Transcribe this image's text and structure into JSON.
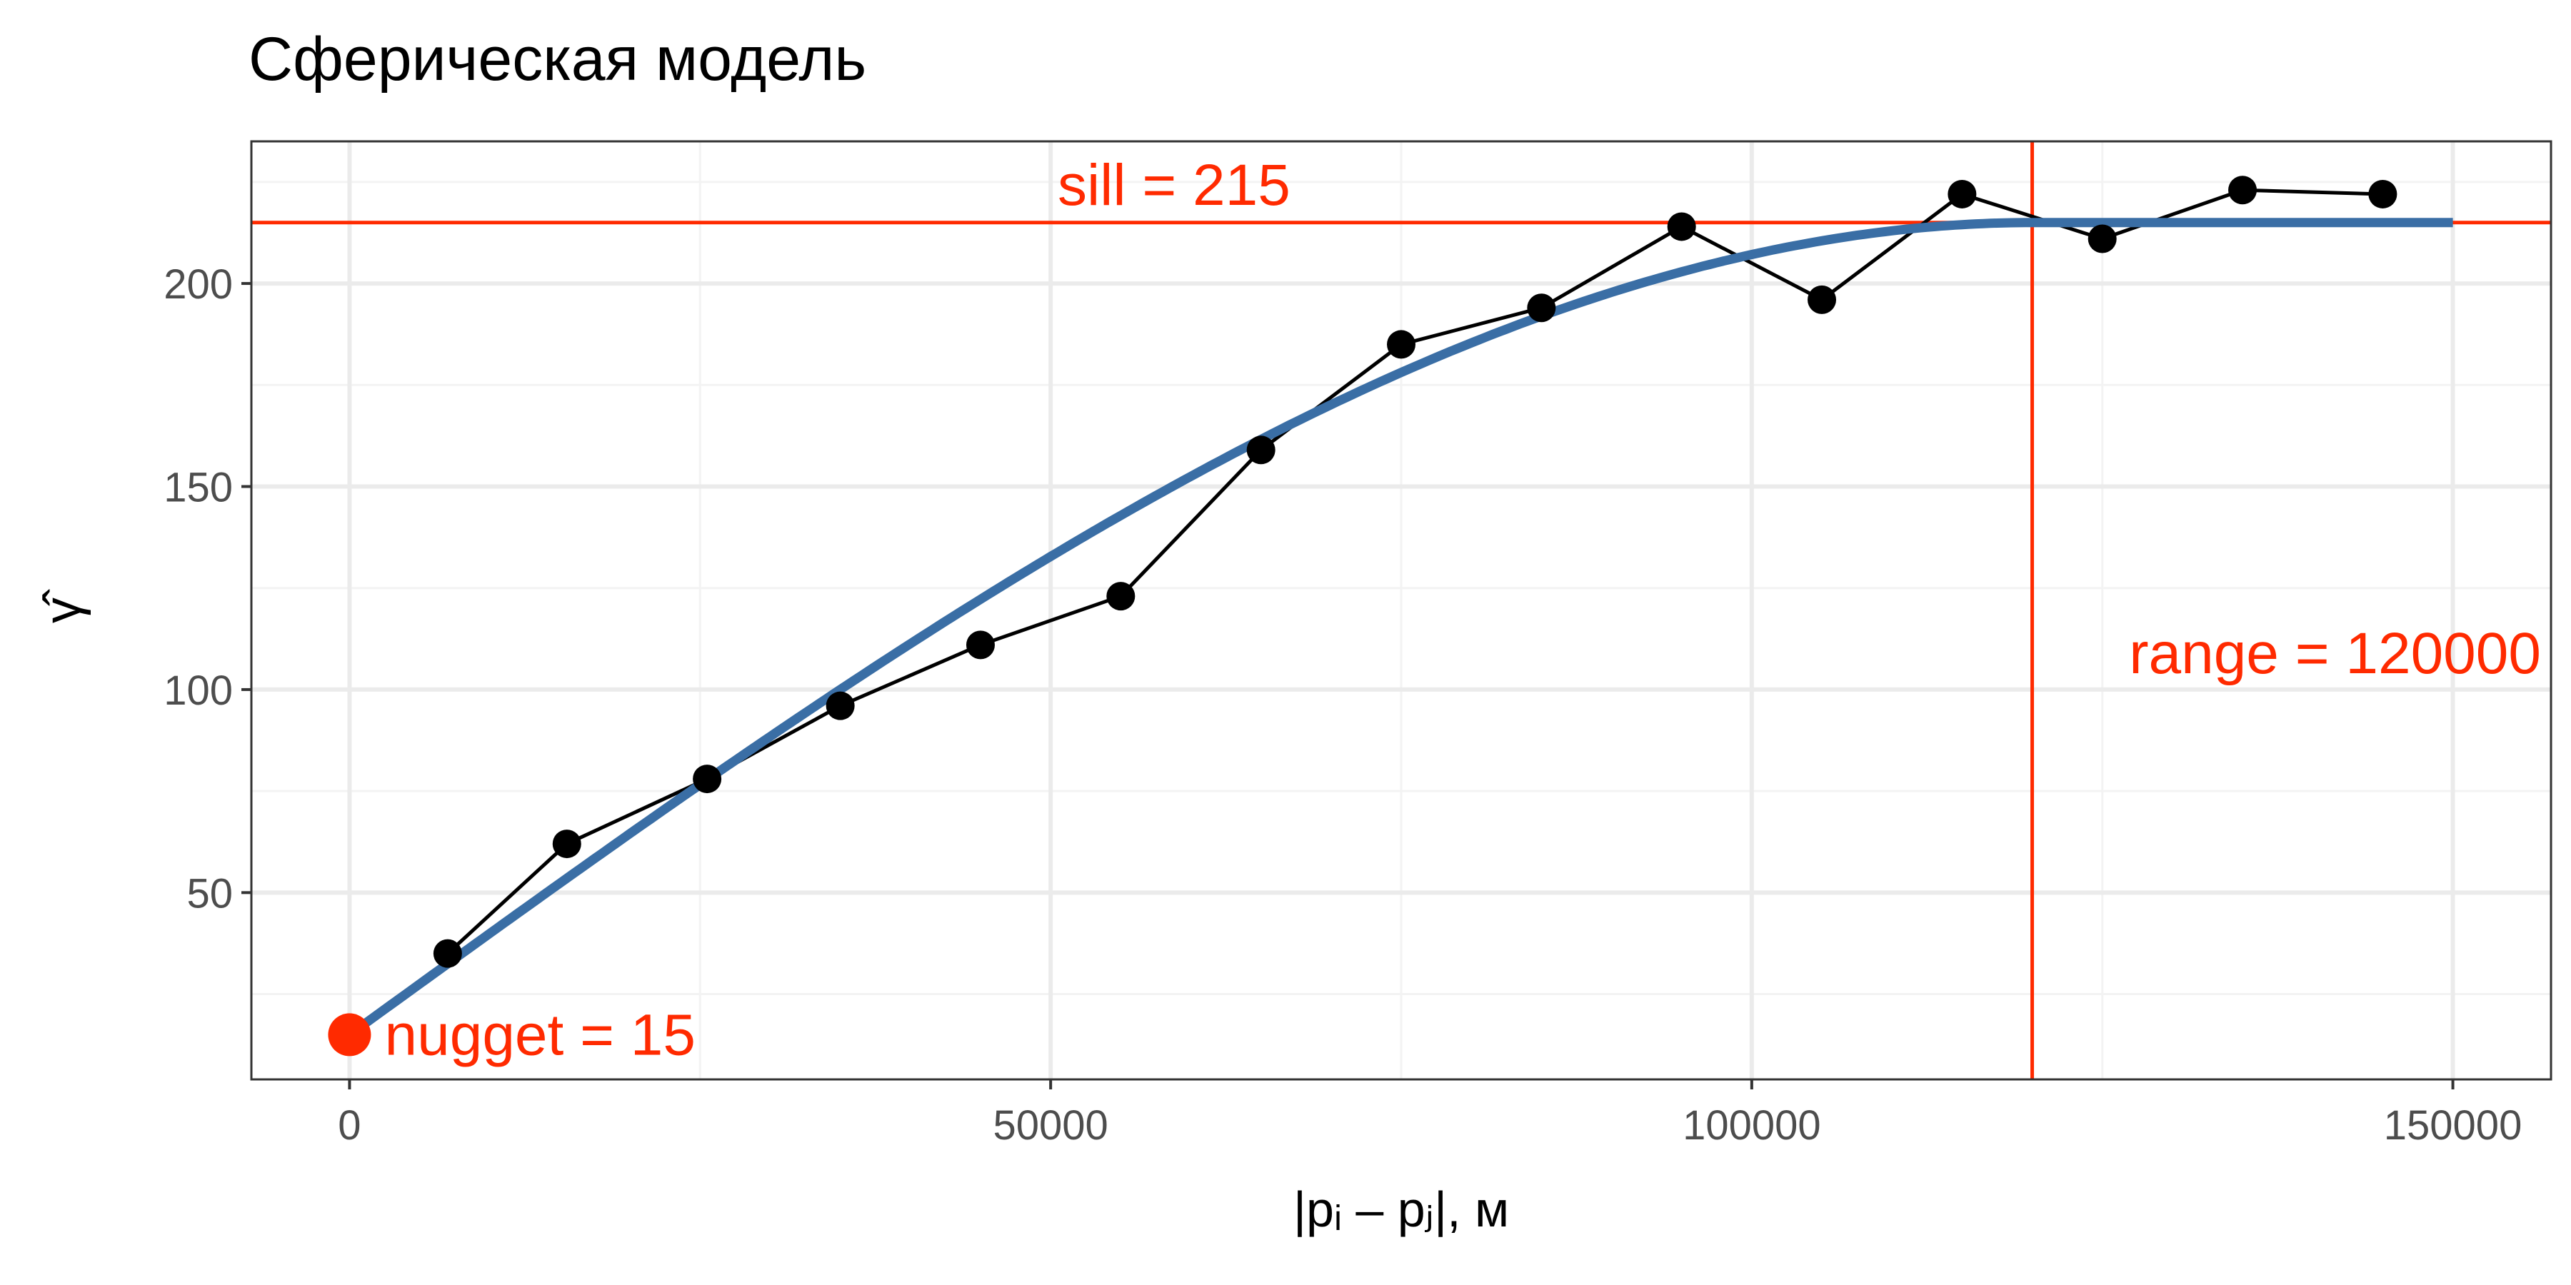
{
  "chart_data": {
    "type": "line",
    "title": "Сферическая модель",
    "xlabel": "|pᵢ – pⱼ|, м",
    "ylabel": "γ̂",
    "xlim": [
      -7000,
      157000
    ],
    "ylim": [
      4,
      235
    ],
    "x_ticks": [
      0,
      50000,
      100000,
      150000
    ],
    "x_tick_labels": [
      "0",
      "50000",
      "100000",
      "150000"
    ],
    "y_ticks": [
      50,
      100,
      150,
      200
    ],
    "y_tick_labels": [
      "50",
      "100",
      "150",
      "200"
    ],
    "grid": true,
    "legend": "none",
    "series": [
      {
        "role": "empirical",
        "x": [
          7000,
          15500,
          25500,
          35000,
          45000,
          55000,
          65000,
          75000,
          85000,
          95000,
          105000,
          115000,
          125000,
          135000,
          145000
        ],
        "y": [
          35,
          62,
          78,
          96,
          111,
          123,
          159,
          185,
          194,
          214,
          196,
          222,
          211,
          223,
          222
        ],
        "color": "#000000"
      },
      {
        "role": "model",
        "model": "spherical",
        "nugget": 15,
        "sill": 215,
        "range": 120000,
        "x_extent": [
          0,
          150000
        ],
        "color": "#3a6ea5"
      }
    ],
    "annotations": {
      "sill": {
        "value": 215,
        "label": "sill = 215",
        "color": "#ff2a00"
      },
      "range": {
        "value": 120000,
        "label": "range = 120000",
        "color": "#ff2a00"
      },
      "nugget": {
        "value": 15,
        "label": "nugget = 15",
        "color": "#ff2a00"
      }
    },
    "colors": {
      "panel_border": "#333333",
      "grid_major": "#ebebeb",
      "grid_minor": "#f3f3f3",
      "tick_text": "#4d4d4d"
    }
  }
}
